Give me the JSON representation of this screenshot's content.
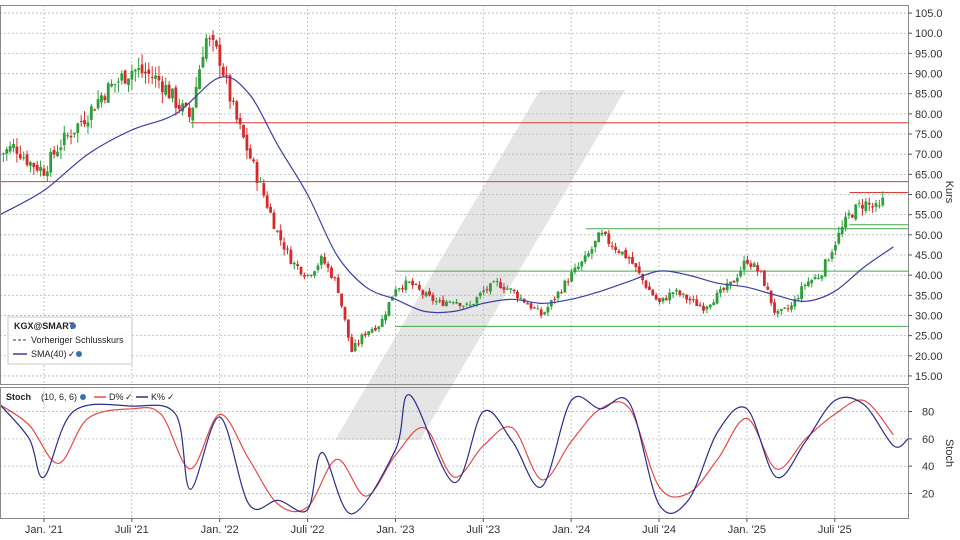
{
  "colors": {
    "up": "#2e9e3a",
    "down": "#d42a2a",
    "sma": "#3b3fa8",
    "d_line": "#e34a4a",
    "k_line": "#2b2d8c",
    "red_level": "#e03a3a",
    "green_level": "#44a84a",
    "grid": "#b5b5b5",
    "watermark": "#dcdcdc"
  },
  "chart_data": [
    {
      "type": "candlestick",
      "ylabel": "Kurs",
      "ylim": [
        13,
        107
      ],
      "y_ticks": [
        "105.0",
        "100.0",
        "95.00",
        "90.00",
        "85.00",
        "80.00",
        "75.00",
        "70.00",
        "65.00",
        "60.00",
        "55.00",
        "50.00",
        "45.00",
        "40.00",
        "35.00",
        "30.00",
        "25.00",
        "20.00",
        "15.00"
      ],
      "x_ticks": [
        "Jan. '21",
        "Juli '21",
        "Jan. '22",
        "Juli '22",
        "Jan. '23",
        "Juli '23",
        "Jan. '24",
        "Juli '24",
        "Jan. '25",
        "Juli '25"
      ],
      "x_range": [
        "2020-10",
        "2025-12"
      ],
      "grid": true,
      "legend_position": "bottom-left",
      "legend": {
        "symbol": "KGX@SMART",
        "prev_close": "Vorheriger Schlusskurs",
        "sma": "SMA(40)"
      },
      "close_path": [
        [
          "2020-10",
          70
        ],
        [
          "2020-11",
          72
        ],
        [
          "2020-12",
          68
        ],
        [
          "2021-01",
          66
        ],
        [
          "2021-02",
          72
        ],
        [
          "2021-03",
          76
        ],
        [
          "2021-04",
          80
        ],
        [
          "2021-05",
          85
        ],
        [
          "2021-06",
          88
        ],
        [
          "2021-07",
          91
        ],
        [
          "2021-08",
          90
        ],
        [
          "2021-09",
          88
        ],
        [
          "2021-10",
          83
        ],
        [
          "2021-11",
          79
        ],
        [
          "2021-12",
          99
        ],
        [
          "2022-01",
          94
        ],
        [
          "2022-02",
          80
        ],
        [
          "2022-03",
          70
        ],
        [
          "2022-04",
          60
        ],
        [
          "2022-05",
          50
        ],
        [
          "2022-06",
          43
        ],
        [
          "2022-07",
          40
        ],
        [
          "2022-08",
          44
        ],
        [
          "2022-09",
          38
        ],
        [
          "2022-10",
          21
        ],
        [
          "2022-11",
          26
        ],
        [
          "2022-12",
          28
        ],
        [
          "2023-01",
          37
        ],
        [
          "2023-02",
          38
        ],
        [
          "2023-03",
          35
        ],
        [
          "2023-04",
          33
        ],
        [
          "2023-05",
          34
        ],
        [
          "2023-06",
          32
        ],
        [
          "2023-07",
          36
        ],
        [
          "2023-08",
          38
        ],
        [
          "2023-09",
          36
        ],
        [
          "2023-10",
          33
        ],
        [
          "2023-11",
          30
        ],
        [
          "2023-12",
          35
        ],
        [
          "2024-01",
          40
        ],
        [
          "2024-02",
          44
        ],
        [
          "2024-03",
          50
        ],
        [
          "2024-04",
          47
        ],
        [
          "2024-05",
          44
        ],
        [
          "2024-06",
          38
        ],
        [
          "2024-07",
          33
        ],
        [
          "2024-08",
          36
        ],
        [
          "2024-09",
          34
        ],
        [
          "2024-10",
          32
        ],
        [
          "2024-11",
          35
        ],
        [
          "2024-12",
          38
        ],
        [
          "2025-01",
          44
        ],
        [
          "2025-02",
          40
        ],
        [
          "2025-03",
          30
        ],
        [
          "2025-04",
          32
        ],
        [
          "2025-05",
          38
        ],
        [
          "2025-06",
          40
        ],
        [
          "2025-07",
          48
        ],
        [
          "2025-08",
          55
        ],
        [
          "2025-09",
          58
        ],
        [
          "2025-10",
          56
        ],
        [
          "2025-11",
          64
        ]
      ],
      "sma40": [
        [
          "2020-10",
          55
        ],
        [
          "2021-01",
          61
        ],
        [
          "2021-04",
          70
        ],
        [
          "2021-07",
          76
        ],
        [
          "2021-10",
          80
        ],
        [
          "2022-01",
          89
        ],
        [
          "2022-03",
          85
        ],
        [
          "2022-05",
          72
        ],
        [
          "2022-07",
          60
        ],
        [
          "2022-09",
          45
        ],
        [
          "2022-11",
          37
        ],
        [
          "2023-01",
          34
        ],
        [
          "2023-03",
          31
        ],
        [
          "2023-05",
          31
        ],
        [
          "2023-07",
          33
        ],
        [
          "2023-09",
          34
        ],
        [
          "2023-11",
          33
        ],
        [
          "2024-01",
          34
        ],
        [
          "2024-03",
          36
        ],
        [
          "2024-05",
          38.5
        ],
        [
          "2024-07",
          41
        ],
        [
          "2024-09",
          40
        ],
        [
          "2024-11",
          38
        ],
        [
          "2025-01",
          37
        ],
        [
          "2025-03",
          35
        ],
        [
          "2025-05",
          33.5
        ],
        [
          "2025-07",
          36
        ],
        [
          "2025-09",
          42
        ],
        [
          "2025-11",
          47
        ]
      ],
      "horizontal_levels": [
        {
          "color": "red",
          "y": 77.8,
          "from": "2021-11",
          "to": "2025-12"
        },
        {
          "color": "red",
          "y": 63.2,
          "from": "2020-10",
          "to": "2025-12"
        },
        {
          "color": "red",
          "y": 60.5,
          "from": "2025-08",
          "to": "2025-12"
        },
        {
          "color": "green",
          "y": 52.5,
          "from": "2025-08",
          "to": "2025-12"
        },
        {
          "color": "green",
          "y": 51.5,
          "from": "2024-02",
          "to": "2025-12"
        },
        {
          "color": "green",
          "y": 41.0,
          "from": "2023-01",
          "to": "2025-12"
        },
        {
          "color": "green",
          "y": 27.3,
          "from": "2023-01",
          "to": "2025-12"
        }
      ]
    },
    {
      "type": "line",
      "title": "Stoch",
      "params": "(10, 6, 6)",
      "ylabel": "Stoch",
      "ylim": [
        2,
        98
      ],
      "y_ticks": [
        "80",
        "60",
        "40",
        "20"
      ],
      "series": [
        {
          "name": "D%",
          "values": [
            [
              "2020-10",
              85
            ],
            [
              "2020-12",
              70
            ],
            [
              "2021-02",
              42
            ],
            [
              "2021-04",
              75
            ],
            [
              "2021-07",
              82
            ],
            [
              "2021-09",
              78
            ],
            [
              "2021-11",
              38
            ],
            [
              "2022-01",
              78
            ],
            [
              "2022-03",
              45
            ],
            [
              "2022-05",
              12
            ],
            [
              "2022-07",
              10
            ],
            [
              "2022-09",
              45
            ],
            [
              "2022-11",
              18
            ],
            [
              "2023-01",
              48
            ],
            [
              "2023-03",
              68
            ],
            [
              "2023-05",
              32
            ],
            [
              "2023-07",
              55
            ],
            [
              "2023-09",
              68
            ],
            [
              "2023-11",
              30
            ],
            [
              "2024-01",
              58
            ],
            [
              "2024-03",
              82
            ],
            [
              "2024-05",
              82
            ],
            [
              "2024-07",
              25
            ],
            [
              "2024-09",
              20
            ],
            [
              "2024-11",
              45
            ],
            [
              "2025-01",
              75
            ],
            [
              "2025-03",
              38
            ],
            [
              "2025-05",
              60
            ],
            [
              "2025-07",
              78
            ],
            [
              "2025-09",
              88
            ],
            [
              "2025-11",
              63
            ]
          ]
        },
        {
          "name": "K%",
          "values": [
            [
              "2020-10",
              85
            ],
            [
              "2020-12",
              60
            ],
            [
              "2021-01",
              32
            ],
            [
              "2021-03",
              80
            ],
            [
              "2021-07",
              84
            ],
            [
              "2021-10",
              78
            ],
            [
              "2021-11",
              23
            ],
            [
              "2022-01",
              76
            ],
            [
              "2022-03",
              12
            ],
            [
              "2022-05",
              15
            ],
            [
              "2022-07",
              8
            ],
            [
              "2022-08",
              50
            ],
            [
              "2022-10",
              5
            ],
            [
              "2023-01",
              52
            ],
            [
              "2023-02",
              92
            ],
            [
              "2023-05",
              28
            ],
            [
              "2023-07",
              80
            ],
            [
              "2023-09",
              58
            ],
            [
              "2023-11",
              25
            ],
            [
              "2024-01",
              88
            ],
            [
              "2024-03",
              82
            ],
            [
              "2024-05",
              86
            ],
            [
              "2024-07",
              12
            ],
            [
              "2024-09",
              15
            ],
            [
              "2024-11",
              65
            ],
            [
              "2025-01",
              82
            ],
            [
              "2025-03",
              32
            ],
            [
              "2025-05",
              58
            ],
            [
              "2025-07",
              88
            ],
            [
              "2025-09",
              85
            ],
            [
              "2025-11",
              55
            ],
            [
              "2025-12",
              60
            ]
          ]
        }
      ]
    }
  ]
}
